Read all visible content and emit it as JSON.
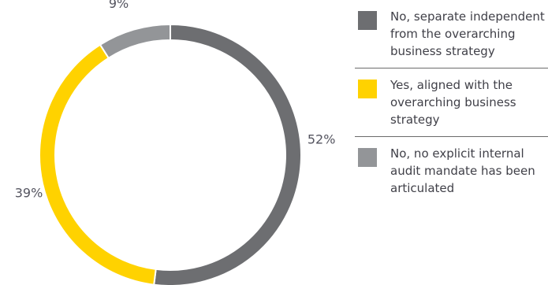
{
  "chart_data": {
    "type": "pie",
    "categories": [
      "No, separate independent from the overarching business strategy",
      "Yes, aligned with the overarching business strategy",
      "No, no explicit internal audit mandate has been articulated"
    ],
    "values": [
      52,
      39,
      9
    ],
    "value_labels": [
      "52%",
      "39%",
      "9%"
    ],
    "colors": [
      "#6d6e71",
      "#ffd200",
      "#939598"
    ],
    "style": "donut",
    "legend_position": "right"
  },
  "legend": {
    "items": [
      {
        "label": "No, separate independent from the overarching business strategy",
        "color": "#6d6e71"
      },
      {
        "label": "Yes, aligned with the overarching business strategy",
        "color": "#ffd200"
      },
      {
        "label": "No, no explicit internal audit mandate has been articulated",
        "color": "#939598"
      }
    ]
  }
}
